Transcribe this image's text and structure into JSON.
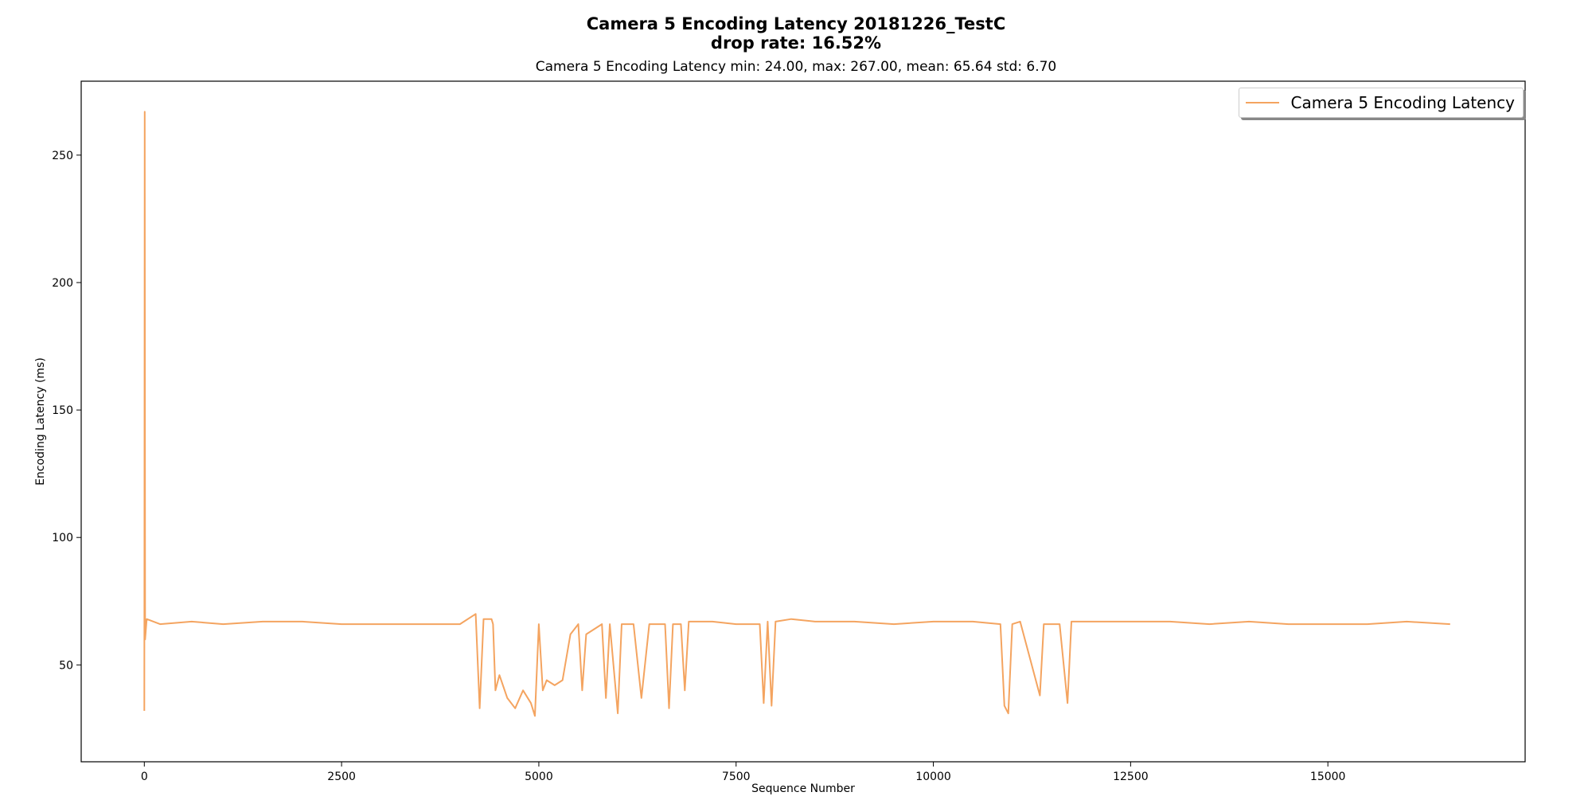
{
  "title_line1": "Camera 5 Encoding Latency 20181226_TestC",
  "title_line2": "drop rate: 16.52%",
  "subtitle": "Camera 5 Encoding Latency min: 24.00, max: 267.00, mean: 65.64 std: 6.70",
  "legend_label": "Camera 5 Encoding Latency",
  "line_color": "#f4a460",
  "chart_data": {
    "type": "line",
    "title": "Camera 5 Encoding Latency 20181226_TestC\ndrop rate: 16.52%",
    "subtitle": "Camera 5 Encoding Latency min: 24.00, max: 267.00, mean: 65.64 std: 6.70",
    "xlabel": "Sequence Number",
    "ylabel": "Encoding Latency (ms)",
    "xlim": [
      -800,
      17500
    ],
    "ylim": [
      12,
      279
    ],
    "x_ticks": [
      0,
      2500,
      5000,
      7500,
      10000,
      12500,
      15000
    ],
    "y_ticks": [
      50,
      100,
      150,
      200,
      250
    ],
    "grid": false,
    "legend_position": "top-right",
    "series": [
      {
        "name": "Camera 5 Encoding Latency",
        "color": "#f4a460",
        "stats": {
          "min": 24.0,
          "max": 267.0,
          "mean": 65.64,
          "std": 6.7
        },
        "points": [
          [
            0,
            32
          ],
          [
            5,
            267
          ],
          [
            10,
            60
          ],
          [
            30,
            68
          ],
          [
            200,
            66
          ],
          [
            600,
            67
          ],
          [
            1000,
            66
          ],
          [
            1500,
            67
          ],
          [
            2000,
            67
          ],
          [
            2500,
            66
          ],
          [
            3000,
            66
          ],
          [
            3500,
            66
          ],
          [
            4000,
            66
          ],
          [
            4200,
            70
          ],
          [
            4250,
            33
          ],
          [
            4300,
            68
          ],
          [
            4400,
            68
          ],
          [
            4420,
            66
          ],
          [
            4450,
            40
          ],
          [
            4500,
            46
          ],
          [
            4600,
            37
          ],
          [
            4700,
            33
          ],
          [
            4800,
            40
          ],
          [
            4900,
            35
          ],
          [
            4950,
            30
          ],
          [
            5000,
            66
          ],
          [
            5050,
            40
          ],
          [
            5100,
            44
          ],
          [
            5200,
            42
          ],
          [
            5300,
            44
          ],
          [
            5400,
            62
          ],
          [
            5500,
            66
          ],
          [
            5550,
            40
          ],
          [
            5600,
            62
          ],
          [
            5800,
            66
          ],
          [
            5850,
            37
          ],
          [
            5900,
            66
          ],
          [
            6000,
            31
          ],
          [
            6050,
            66
          ],
          [
            6200,
            66
          ],
          [
            6300,
            37
          ],
          [
            6400,
            66
          ],
          [
            6600,
            66
          ],
          [
            6650,
            33
          ],
          [
            6700,
            66
          ],
          [
            6800,
            66
          ],
          [
            6850,
            40
          ],
          [
            6900,
            67
          ],
          [
            7200,
            67
          ],
          [
            7500,
            66
          ],
          [
            7800,
            66
          ],
          [
            7850,
            35
          ],
          [
            7900,
            67
          ],
          [
            7950,
            34
          ],
          [
            8000,
            67
          ],
          [
            8200,
            68
          ],
          [
            8500,
            67
          ],
          [
            9000,
            67
          ],
          [
            9500,
            66
          ],
          [
            10000,
            67
          ],
          [
            10500,
            67
          ],
          [
            10850,
            66
          ],
          [
            10900,
            34
          ],
          [
            10950,
            31
          ],
          [
            11000,
            66
          ],
          [
            11100,
            67
          ],
          [
            11350,
            38
          ],
          [
            11400,
            66
          ],
          [
            11600,
            66
          ],
          [
            11700,
            35
          ],
          [
            11750,
            67
          ],
          [
            12000,
            67
          ],
          [
            12500,
            67
          ],
          [
            13000,
            67
          ],
          [
            13500,
            66
          ],
          [
            14000,
            67
          ],
          [
            14500,
            66
          ],
          [
            15000,
            66
          ],
          [
            15500,
            66
          ],
          [
            16000,
            67
          ],
          [
            16550,
            66
          ]
        ]
      }
    ]
  }
}
